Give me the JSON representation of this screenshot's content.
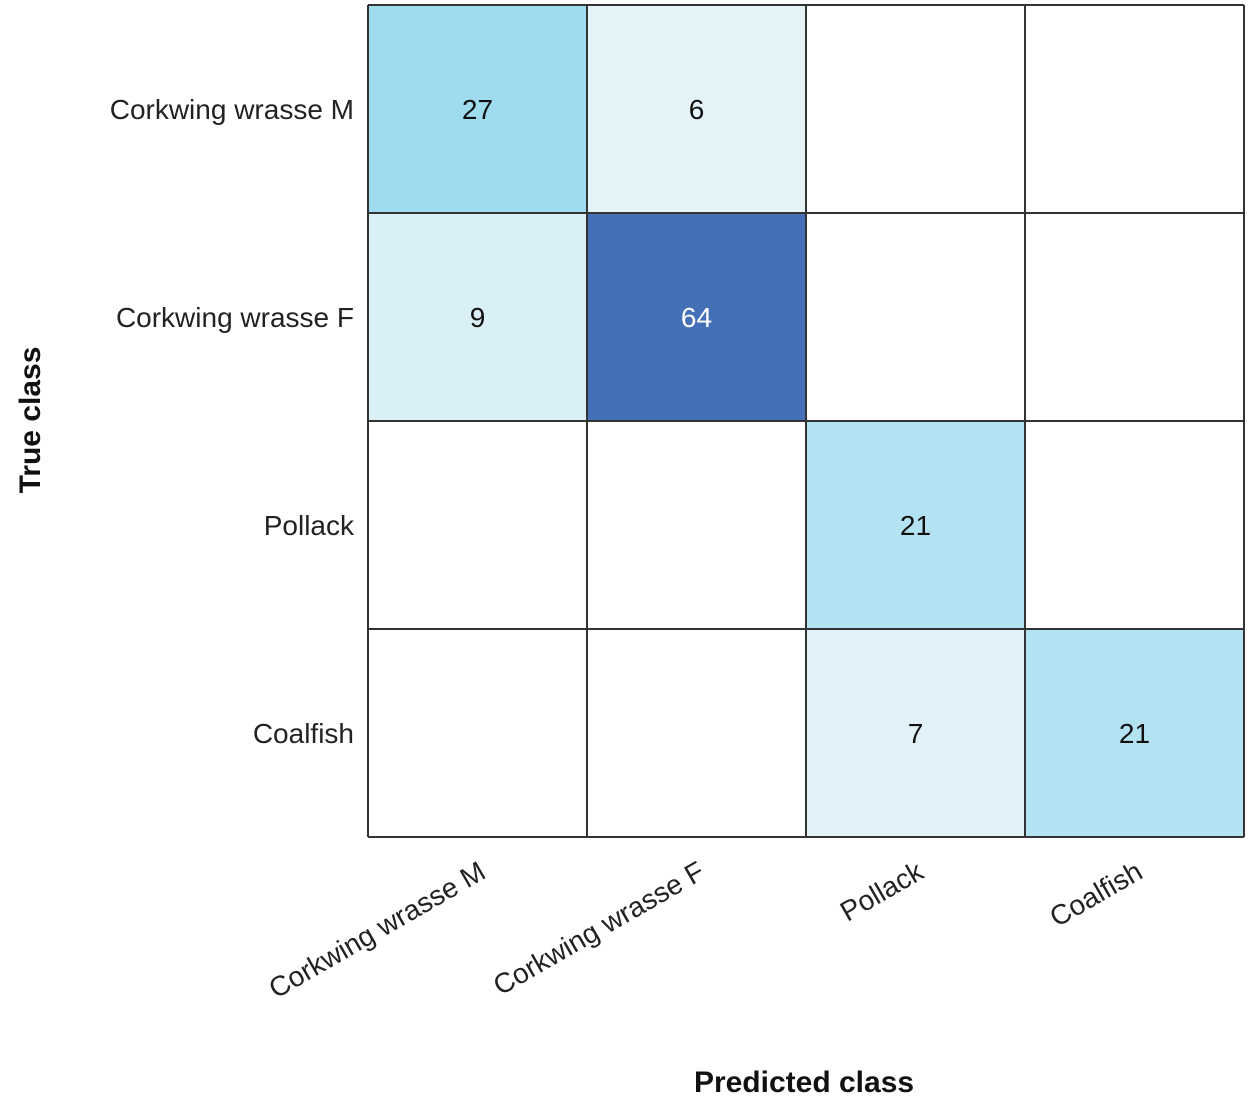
{
  "chart_data": {
    "type": "heatmap",
    "title": "",
    "xlabel": "Predicted class",
    "ylabel": "True class",
    "rows": [
      "Corkwing wrasse M",
      "Corkwing wrasse F",
      "Pollack",
      "Coalfish"
    ],
    "columns": [
      "Corkwing wrasse M",
      "Corkwing wrasse F",
      "Pollack",
      "Coalfish"
    ],
    "values": [
      [
        27,
        6,
        null,
        null
      ],
      [
        9,
        64,
        null,
        null
      ],
      [
        null,
        null,
        21,
        null
      ],
      [
        null,
        null,
        7,
        21
      ]
    ],
    "color_scale": {
      "min_color": "#e6f4f8",
      "mid_color": "#a0dcf0",
      "max_color": "#4470b8"
    },
    "grid_color": "#333333",
    "dark_text_color": "#111111",
    "light_text_color": "#ffffff"
  }
}
